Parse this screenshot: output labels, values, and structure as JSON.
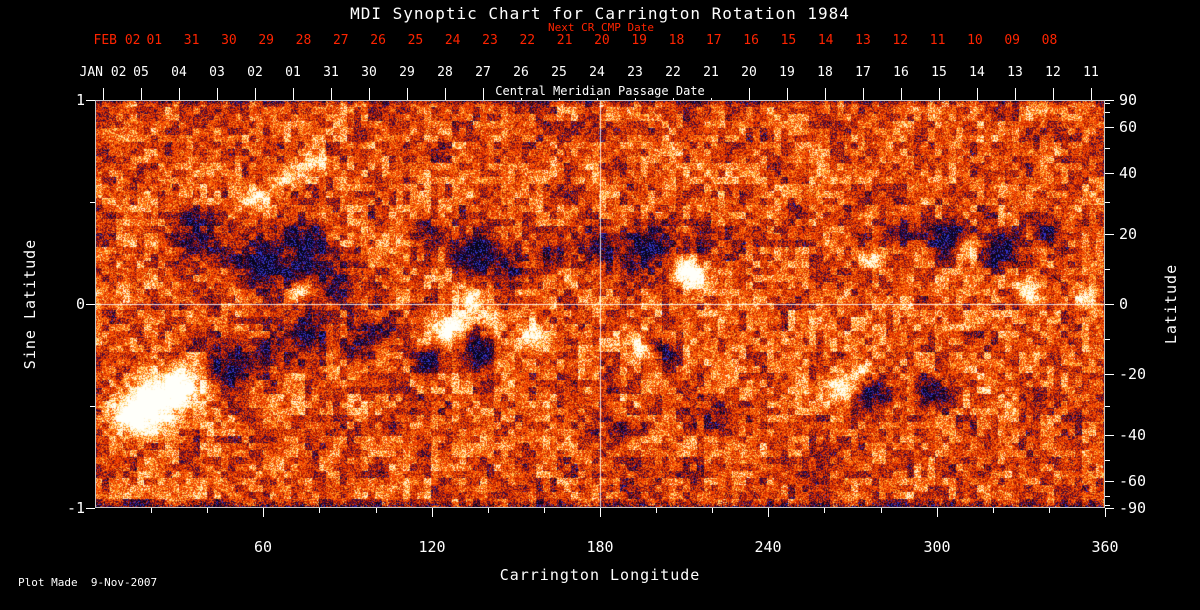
{
  "chart_data": {
    "type": "heatmap",
    "title": "MDI Synoptic Chart for Carrington Rotation 1984",
    "top_axes": {
      "next_cr_cmp_label": "Next CR CMP Date",
      "next_cr_dates": [
        "FEB 02",
        "01",
        "31",
        "30",
        "29",
        "28",
        "27",
        "26",
        "25",
        "24",
        "23",
        "22",
        "21",
        "20",
        "19",
        "18",
        "17",
        "16",
        "15",
        "14",
        "13",
        "12",
        "11",
        "10",
        "09",
        "08"
      ],
      "cmp_axis_label": "Central Meridian Passage Date",
      "cmp_dates": [
        "JAN 02",
        "05",
        "04",
        "03",
        "02",
        "01",
        "31",
        "30",
        "29",
        "28",
        "27",
        "26",
        "25",
        "24",
        "23",
        "22",
        "21",
        "20",
        "19",
        "18",
        "17",
        "16",
        "15",
        "14",
        "13",
        "12",
        "11"
      ]
    },
    "x_axis": {
      "label": "Carrington Longitude",
      "range": [
        0,
        360
      ],
      "major_ticks": [
        60,
        120,
        180,
        240,
        300,
        360
      ],
      "minor_step": 20
    },
    "y_left": {
      "label": "Sine Latitude",
      "range": [
        -1,
        1
      ],
      "major_ticks": [
        1,
        0,
        -1
      ],
      "minor_ticks": [
        0.5,
        -0.5
      ]
    },
    "y_right": {
      "label": "Latitude",
      "major_ticks": [
        90,
        60,
        40,
        20,
        0,
        -20,
        -40,
        -60,
        -90
      ],
      "minor_step_deg": 10
    },
    "grid": {
      "vline_lon": 180,
      "hline_sinlat": 0
    },
    "colors": {
      "background": "#000000",
      "axis_text": "#ffffff",
      "next_cr_red": "#ff2400",
      "frame": "#c8c8c8",
      "grid_line": "#ffffff"
    },
    "palette": [
      {
        "min": 0.95,
        "color": "#fffffa"
      },
      {
        "min": 0.7,
        "color": "#fff3d2"
      },
      {
        "min": 0.5,
        "color": "#ffd576"
      },
      {
        "min": 0.35,
        "color": "#ff9e28"
      },
      {
        "min": 0.1,
        "color": "#ff680a"
      },
      {
        "min": -0.15,
        "color": "#ee3e02"
      },
      {
        "min": -0.35,
        "color": "#c52700"
      },
      {
        "min": -0.5,
        "color": "#94140c"
      },
      {
        "min": -0.65,
        "color": "#5c0c2c"
      },
      {
        "min": -0.85,
        "color": "#2a0a48"
      },
      {
        "min": -99,
        "color": "#0a051a",
        "speckle": "#3434c8"
      }
    ],
    "noise": {
      "seed": 1984,
      "fine": 0.95,
      "coarse_small": 0.75,
      "coarse_large": 0.5,
      "cell_small": 7,
      "cell_large": 21
    },
    "active_regions": [
      [
        57,
        0.52,
        4,
        0.035,
        0.9
      ],
      [
        68,
        0.62,
        4,
        0.035,
        0.95
      ],
      [
        78,
        0.7,
        4,
        0.03,
        0.85
      ],
      [
        37,
        0.33,
        6.5,
        0.09,
        -1.0
      ],
      [
        59,
        0.19,
        5.7,
        0.08,
        -1.2
      ],
      [
        73,
        0.26,
        7.1,
        0.1,
        -1.3
      ],
      [
        87,
        0.11,
        5.0,
        0.07,
        -0.9
      ],
      [
        73,
        0.07,
        2.5,
        0.034,
        1.0
      ],
      [
        68,
        0.25,
        2.1,
        0.03,
        0.9
      ],
      [
        134,
        0.26,
        5.0,
        0.07,
        -1.2
      ],
      [
        119,
        0.36,
        3.6,
        0.05,
        -0.8
      ],
      [
        134,
        0.015,
        3.6,
        0.05,
        1.3
      ],
      [
        126,
        -0.13,
        4.3,
        0.06,
        1.4
      ],
      [
        141,
        -0.08,
        2.8,
        0.04,
        0.9
      ],
      [
        137,
        -0.23,
        4.3,
        0.06,
        -1.3
      ],
      [
        119,
        -0.26,
        3.6,
        0.05,
        -1.0
      ],
      [
        94,
        -0.21,
        4.3,
        0.06,
        -1.1
      ],
      [
        156,
        -0.16,
        3.2,
        0.045,
        1.1
      ],
      [
        180,
        0.31,
        5.0,
        0.07,
        -1.0
      ],
      [
        198,
        0.26,
        5.7,
        0.08,
        -1.4
      ],
      [
        216,
        0.31,
        4.3,
        0.06,
        -0.9
      ],
      [
        212,
        0.17,
        3.9,
        0.055,
        1.5
      ],
      [
        199,
        0.21,
        2.5,
        0.035,
        1.0
      ],
      [
        194,
        -0.21,
        2.8,
        0.04,
        1.0
      ],
      [
        203,
        -0.23,
        2.8,
        0.04,
        -1.0
      ],
      [
        187,
        -0.6,
        7.8,
        0.05,
        -0.7
      ],
      [
        223,
        -0.55,
        7.1,
        0.05,
        -0.6
      ],
      [
        287,
        0.36,
        4.3,
        0.06,
        -0.9
      ],
      [
        305,
        0.31,
        5.7,
        0.08,
        -1.3
      ],
      [
        322,
        0.26,
        5.0,
        0.07,
        -1.1
      ],
      [
        340,
        0.36,
        4.3,
        0.06,
        -0.8
      ],
      [
        310,
        0.27,
        3.6,
        0.05,
        1.5
      ],
      [
        333,
        0.06,
        2.8,
        0.04,
        1.1
      ],
      [
        353,
        0.04,
        2.5,
        0.035,
        0.9
      ],
      [
        266,
        -0.4,
        4.3,
        0.06,
        1.3
      ],
      [
        278,
        -0.43,
        4.3,
        0.06,
        -1.1
      ],
      [
        274,
        -0.33,
        2.8,
        0.04,
        0.9
      ],
      [
        298,
        -0.43,
        4.3,
        0.06,
        -1.2
      ],
      [
        20,
        -0.48,
        7.1,
        0.1,
        1.6
      ],
      [
        32,
        -0.4,
        5.0,
        0.07,
        1.4
      ],
      [
        48,
        -0.31,
        5.7,
        0.08,
        -1.3
      ],
      [
        62,
        -0.23,
        4.3,
        0.06,
        -0.9
      ],
      [
        12,
        -0.55,
        4.3,
        0.06,
        1.2
      ],
      [
        77,
        -0.13,
        5.0,
        0.07,
        -1.0
      ],
      [
        102,
        -0.13,
        3.6,
        0.05,
        -0.8
      ],
      [
        148,
        0.19,
        4.3,
        0.06,
        -0.9
      ],
      [
        162,
        0.24,
        3.6,
        0.05,
        -0.7
      ],
      [
        276,
        0.21,
        2.5,
        0.035,
        0.8
      ]
    ]
  },
  "footer": {
    "plot_made": "Plot Made  9-Nov-2007"
  }
}
